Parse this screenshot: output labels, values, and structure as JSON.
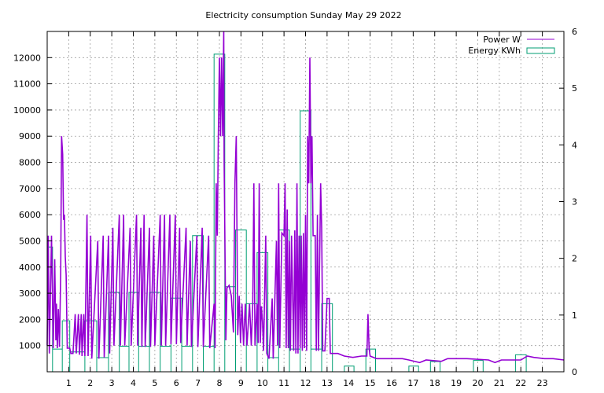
{
  "chart_data": {
    "type": "line",
    "title": "Electricity consumption Sunday May 29 2022",
    "x_ticks": [
      "1",
      "2",
      "3",
      "4",
      "5",
      "6",
      "7",
      "8",
      "9",
      "10",
      "11",
      "12",
      "13",
      "14",
      "15",
      "16",
      "17",
      "18",
      "19",
      "20",
      "21",
      "22",
      "23"
    ],
    "xlim": [
      0,
      24
    ],
    "y_left": {
      "range": [
        0,
        13000
      ],
      "ticks": [
        1000,
        2000,
        3000,
        4000,
        5000,
        6000,
        7000,
        8000,
        9000,
        10000,
        11000,
        12000
      ]
    },
    "y_right": {
      "range": [
        0,
        6
      ],
      "ticks": [
        0,
        1,
        2,
        3,
        4,
        5,
        6
      ]
    },
    "grid": true,
    "legend_position": "top-right",
    "series": [
      {
        "name": "Power W",
        "axis": "left",
        "color": "#9400d3",
        "style": "line",
        "points": [
          [
            0.0,
            1000
          ],
          [
            0.05,
            5200
          ],
          [
            0.1,
            700
          ],
          [
            0.2,
            5200
          ],
          [
            0.28,
            900
          ],
          [
            0.35,
            4300
          ],
          [
            0.4,
            1200
          ],
          [
            0.43,
            2600
          ],
          [
            0.47,
            900
          ],
          [
            0.52,
            2400
          ],
          [
            0.57,
            950
          ],
          [
            0.63,
            3800
          ],
          [
            0.67,
            9000
          ],
          [
            0.72,
            8300
          ],
          [
            0.76,
            5800
          ],
          [
            0.8,
            6000
          ],
          [
            0.84,
            4400
          ],
          [
            0.88,
            3700
          ],
          [
            0.93,
            900
          ],
          [
            1.05,
            900
          ],
          [
            1.1,
            700
          ],
          [
            1.2,
            700
          ],
          [
            1.3,
            2200
          ],
          [
            1.35,
            700
          ],
          [
            1.45,
            2200
          ],
          [
            1.5,
            650
          ],
          [
            1.58,
            2200
          ],
          [
            1.62,
            600
          ],
          [
            1.7,
            2200
          ],
          [
            1.75,
            600
          ],
          [
            1.85,
            6000
          ],
          [
            1.9,
            600
          ],
          [
            2.02,
            5200
          ],
          [
            2.07,
            500
          ],
          [
            2.35,
            5000
          ],
          [
            2.4,
            500
          ],
          [
            2.6,
            5200
          ],
          [
            2.65,
            550
          ],
          [
            2.85,
            5200
          ],
          [
            2.9,
            700
          ],
          [
            3.05,
            5500
          ],
          [
            3.1,
            1000
          ],
          [
            3.35,
            6000
          ],
          [
            3.4,
            1000
          ],
          [
            3.55,
            6000
          ],
          [
            3.6,
            1000
          ],
          [
            3.85,
            5500
          ],
          [
            3.9,
            1000
          ],
          [
            4.15,
            6000
          ],
          [
            4.2,
            1000
          ],
          [
            4.35,
            5500
          ],
          [
            4.4,
            950
          ],
          [
            4.5,
            6000
          ],
          [
            4.55,
            950
          ],
          [
            4.75,
            5500
          ],
          [
            4.8,
            950
          ],
          [
            4.95,
            5200
          ],
          [
            5.0,
            1000
          ],
          [
            5.25,
            6000
          ],
          [
            5.3,
            1000
          ],
          [
            5.45,
            6000
          ],
          [
            5.5,
            1000
          ],
          [
            5.7,
            6000
          ],
          [
            5.75,
            1050
          ],
          [
            5.95,
            6000
          ],
          [
            6.0,
            1050
          ],
          [
            6.15,
            5500
          ],
          [
            6.2,
            1100
          ],
          [
            6.45,
            5500
          ],
          [
            6.5,
            1000
          ],
          [
            6.65,
            5000
          ],
          [
            6.7,
            950
          ],
          [
            6.95,
            5200
          ],
          [
            7.0,
            950
          ],
          [
            7.2,
            5500
          ],
          [
            7.25,
            950
          ],
          [
            7.5,
            5200
          ],
          [
            7.55,
            900
          ],
          [
            7.75,
            2600
          ],
          [
            7.8,
            900
          ],
          [
            7.85,
            7200
          ],
          [
            7.9,
            5200
          ],
          [
            7.95,
            9000
          ],
          [
            8.0,
            12000
          ],
          [
            8.05,
            9000
          ],
          [
            8.1,
            12000
          ],
          [
            8.15,
            9000
          ],
          [
            8.2,
            13000
          ],
          [
            8.22,
            8000
          ],
          [
            8.3,
            1200
          ],
          [
            8.35,
            3200
          ],
          [
            8.45,
            3300
          ],
          [
            8.55,
            2900
          ],
          [
            8.65,
            1500
          ],
          [
            8.72,
            7200
          ],
          [
            8.78,
            9000
          ],
          [
            8.85,
            1400
          ],
          [
            8.92,
            2900
          ],
          [
            8.98,
            1100
          ],
          [
            9.05,
            2600
          ],
          [
            9.12,
            1000
          ],
          [
            9.2,
            2600
          ],
          [
            9.28,
            1000
          ],
          [
            9.4,
            2600
          ],
          [
            9.48,
            1000
          ],
          [
            9.55,
            2600
          ],
          [
            9.6,
            7200
          ],
          [
            9.65,
            1000
          ],
          [
            9.75,
            2600
          ],
          [
            9.8,
            1100
          ],
          [
            9.85,
            7200
          ],
          [
            9.9,
            1100
          ],
          [
            9.95,
            2500
          ],
          [
            10.0,
            1900
          ],
          [
            10.05,
            800
          ],
          [
            10.15,
            5200
          ],
          [
            10.2,
            700
          ],
          [
            10.3,
            500
          ],
          [
            10.45,
            2800
          ],
          [
            10.5,
            500
          ],
          [
            10.65,
            5000
          ],
          [
            10.7,
            1000
          ],
          [
            10.75,
            7200
          ],
          [
            10.8,
            900
          ],
          [
            10.9,
            5300
          ],
          [
            11.0,
            5200
          ],
          [
            11.05,
            7200
          ],
          [
            11.1,
            900
          ],
          [
            11.15,
            6200
          ],
          [
            11.2,
            900
          ],
          [
            11.25,
            5000
          ],
          [
            11.3,
            800
          ],
          [
            11.35,
            5200
          ],
          [
            11.45,
            800
          ],
          [
            11.5,
            5400
          ],
          [
            11.55,
            700
          ],
          [
            11.6,
            7200
          ],
          [
            11.65,
            700
          ],
          [
            11.7,
            5200
          ],
          [
            11.75,
            900
          ],
          [
            11.8,
            5200
          ],
          [
            11.85,
            800
          ],
          [
            11.9,
            5300
          ],
          [
            11.95,
            900
          ],
          [
            12.0,
            6000
          ],
          [
            12.05,
            800
          ],
          [
            12.1,
            9000
          ],
          [
            12.15,
            7200
          ],
          [
            12.2,
            12000
          ],
          [
            12.25,
            7200
          ],
          [
            12.3,
            9000
          ],
          [
            12.35,
            5200
          ],
          [
            12.45,
            5200
          ],
          [
            12.5,
            800
          ],
          [
            12.55,
            6000
          ],
          [
            12.6,
            800
          ],
          [
            12.7,
            7200
          ],
          [
            12.75,
            5500
          ],
          [
            12.8,
            800
          ],
          [
            12.9,
            800
          ],
          [
            13.0,
            2800
          ],
          [
            13.1,
            2800
          ],
          [
            13.15,
            700
          ],
          [
            13.5,
            700
          ],
          [
            13.8,
            600
          ],
          [
            14.2,
            550
          ],
          [
            14.6,
            600
          ],
          [
            14.85,
            600
          ],
          [
            14.9,
            2200
          ],
          [
            14.95,
            900
          ],
          [
            15.0,
            600
          ],
          [
            15.3,
            500
          ],
          [
            16.5,
            500
          ],
          [
            16.8,
            450
          ],
          [
            17.3,
            350
          ],
          [
            17.6,
            450
          ],
          [
            18.3,
            400
          ],
          [
            18.6,
            500
          ],
          [
            19.5,
            500
          ],
          [
            20.5,
            450
          ],
          [
            20.8,
            350
          ],
          [
            21.1,
            450
          ],
          [
            22.0,
            450
          ],
          [
            22.3,
            600
          ],
          [
            22.6,
            550
          ],
          [
            23.1,
            500
          ],
          [
            23.5,
            500
          ],
          [
            24.0,
            450
          ]
        ]
      },
      {
        "name": "Energy KWh",
        "axis": "right",
        "color": "#009e73",
        "style": "steps",
        "steps": [
          [
            0.0,
            2.2
          ],
          [
            0.25,
            0.4
          ],
          [
            0.7,
            0.9
          ],
          [
            1.05,
            0.35
          ],
          [
            1.75,
            0.9
          ],
          [
            2.3,
            0.25
          ],
          [
            2.85,
            1.4
          ],
          [
            3.35,
            0.45
          ],
          [
            3.8,
            1.4
          ],
          [
            4.25,
            0.45
          ],
          [
            4.75,
            1.4
          ],
          [
            5.25,
            0.45
          ],
          [
            5.75,
            1.3
          ],
          [
            6.25,
            0.45
          ],
          [
            6.75,
            2.4
          ],
          [
            7.25,
            0.45
          ],
          [
            7.75,
            5.6
          ],
          [
            8.25,
            1.5
          ],
          [
            8.75,
            2.5
          ],
          [
            9.25,
            1.2
          ],
          [
            9.75,
            2.1
          ],
          [
            10.25,
            0.25
          ],
          [
            10.75,
            2.5
          ],
          [
            11.25,
            0.4
          ],
          [
            11.75,
            4.6
          ],
          [
            12.25,
            0.4
          ],
          [
            12.75,
            1.2
          ],
          [
            13.25,
            0.0
          ],
          [
            13.8,
            0.1
          ],
          [
            14.25,
            0.0
          ],
          [
            14.8,
            0.4
          ],
          [
            15.25,
            0.0
          ],
          [
            16.8,
            0.1
          ],
          [
            17.25,
            0.0
          ],
          [
            17.8,
            0.18
          ],
          [
            18.25,
            0.0
          ],
          [
            19.8,
            0.2
          ],
          [
            20.25,
            0.0
          ],
          [
            21.75,
            0.3
          ],
          [
            22.25,
            0.0
          ],
          [
            24.0,
            0.0
          ]
        ]
      }
    ]
  }
}
